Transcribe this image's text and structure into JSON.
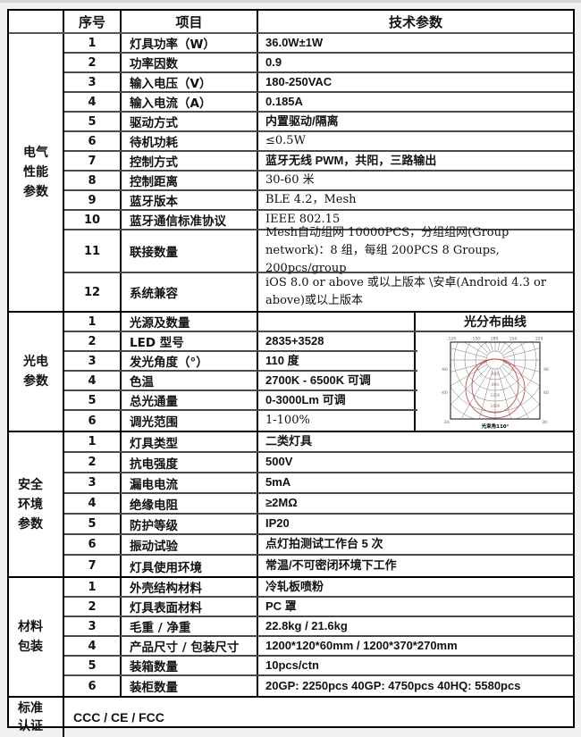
{
  "page": {
    "bg": "#f1f1ef",
    "table_border": "#000000",
    "accent_red": "#c0504d"
  },
  "table": {
    "header": {
      "seq": "序号",
      "item": "项目",
      "param": "技术参数"
    },
    "sections": [
      {
        "label_lines": [
          "电气",
          "性能",
          "参数"
        ],
        "rows": [
          {
            "no": "1",
            "item": "灯具功率（W）",
            "value": "36.0W±1W",
            "style": "b"
          },
          {
            "no": "2",
            "item": "功率因数",
            "value": "0.9",
            "style": "b"
          },
          {
            "no": "3",
            "item": "输入电压（V）",
            "value": "180-250VAC",
            "style": "b"
          },
          {
            "no": "4",
            "item": "输入电流（A）",
            "value": "0.185A",
            "style": "b"
          },
          {
            "no": "5",
            "item": "驱动方式",
            "value": "内置驱动/隔离",
            "style": "b"
          },
          {
            "no": "6",
            "item": "待机功耗",
            "value": "≤0.5W",
            "style": "n"
          },
          {
            "no": "7",
            "item": "控制方式",
            "value": "蓝牙无线 PWM，共阳，三路输出",
            "style": "b"
          },
          {
            "no": "8",
            "item": "控制距离",
            "value": "30-60 米",
            "style": "n"
          },
          {
            "no": "9",
            "item": "蓝牙版本",
            "value": "BLE 4.2，Mesh",
            "style": "n"
          },
          {
            "no": "10",
            "item": "蓝牙通信标准协议",
            "value": "IEEE 802.15",
            "style": "n"
          },
          {
            "no": "11",
            "item": "联接数量",
            "value": "Mesh自动组网 10000PCS，分组组网(Group network)：8 组，每组 200PCS  8 Groups, 200pcs/group",
            "style": "n",
            "tall": 1
          },
          {
            "no": "12",
            "item": "系统兼容",
            "value": "iOS 8.0 or above 或以上版本 \\安卓(Android 4.3 or above)或以上版本",
            "style": "n",
            "tall": 2
          }
        ]
      },
      {
        "label_lines": [
          "光电",
          "参数"
        ],
        "curve": {
          "title": "光分布曲线",
          "caption": "光束角110°",
          "edge_ticks": [
            "-120",
            "-150",
            "180",
            "150",
            "120",
            "-90",
            "90",
            "-60",
            "60",
            "-30",
            "30"
          ],
          "ring_values": [
            "400",
            "800",
            "1200",
            "1600"
          ]
        },
        "rows": [
          {
            "no": "1",
            "item": "光源及数量",
            "value": "",
            "style": "n"
          },
          {
            "no": "2",
            "item": "LED 型号",
            "value": "2835+3528",
            "style": "b"
          },
          {
            "no": "3",
            "item": "发光角度（°）",
            "value": "110 度",
            "style": "b"
          },
          {
            "no": "4",
            "item": "色温",
            "value": "2700K - 6500K  可调",
            "style": "b"
          },
          {
            "no": "5",
            "item": "总光通量",
            "value": "0-3000Lm  可调",
            "style": "b"
          },
          {
            "no": "6",
            "item": "调光范围",
            "value": "1-100%",
            "style": "n"
          }
        ]
      },
      {
        "label_lines": [
          "安全",
          "环境",
          "参数"
        ],
        "rows": [
          {
            "no": "1",
            "item": "灯具类型",
            "value": "二类灯具",
            "style": "b"
          },
          {
            "no": "2",
            "item": "抗电强度",
            "value": "500V",
            "style": "b"
          },
          {
            "no": "3",
            "item": "漏电电流",
            "value": "5mA",
            "style": "b"
          },
          {
            "no": "4",
            "item": "绝缘电阻",
            "value": "≥2MΩ",
            "style": "b"
          },
          {
            "no": "5",
            "item": "防护等级",
            "value": "IP20",
            "style": "b"
          },
          {
            "no": "6",
            "item": "振动试验",
            "value": "点灯拍测试工作台 5 次",
            "style": "b"
          },
          {
            "no": "7",
            "item": "灯具使用环境",
            "value": "常温/不可密闭环境下工作",
            "style": "b"
          }
        ]
      },
      {
        "label_lines": [
          "材料",
          "包装"
        ],
        "rows": [
          {
            "no": "1",
            "item": "外壳结构材料",
            "value": "冷轧板喷粉",
            "style": "b"
          },
          {
            "no": "2",
            "item": "灯具表面材料",
            "value": "PC 罩",
            "style": "b"
          },
          {
            "no": "3",
            "item": "毛重 / 净重",
            "value": "22.8kg / 21.6kg",
            "style": "b"
          },
          {
            "no": "4",
            "item": "产品尺寸 / 包装尺寸",
            "value": "1200*120*60mm / 1200*370*270mm",
            "style": "b"
          },
          {
            "no": "5",
            "item": "装箱数量",
            "value": "10pcs/ctn",
            "style": "b"
          },
          {
            "no": "6",
            "item": "装柜数量",
            "value": "20GP: 2250pcs      40GP: 4750pcs     40HQ: 5580pcs",
            "style": "b"
          }
        ]
      }
    ],
    "footer": {
      "label_lines": [
        "标准",
        "认证"
      ],
      "value": "CCC / CE / FCC"
    }
  }
}
